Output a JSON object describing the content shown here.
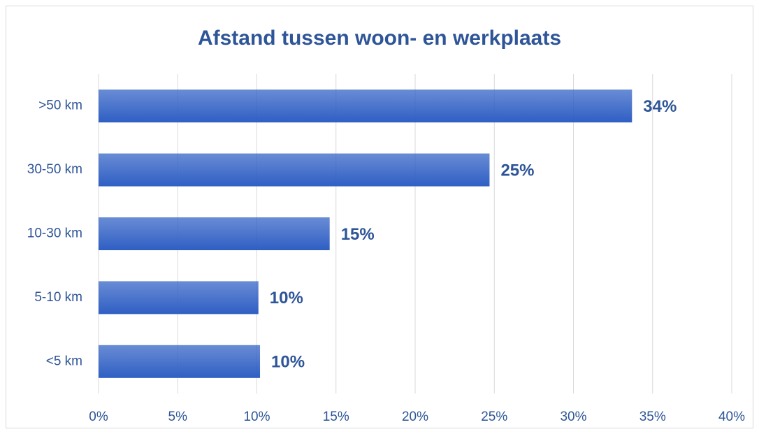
{
  "chart_data": {
    "type": "barh",
    "title": "Afstand tussen woon- en werkplaats",
    "categories": [
      ">50 km",
      "30-50 km",
      "10-30 km",
      "5-10 km",
      "<5 km"
    ],
    "values": [
      33.7,
      24.7,
      14.6,
      10.1,
      10.2
    ],
    "value_labels": [
      "34%",
      "25%",
      "15%",
      "10%",
      "10%"
    ],
    "color": "#2f5fc4",
    "xlim": [
      0,
      40
    ],
    "xticks": [
      {
        "value": 0,
        "label": "0%"
      },
      {
        "value": 5,
        "label": "5%"
      },
      {
        "value": 10,
        "label": "10%"
      },
      {
        "value": 15,
        "label": "15%"
      },
      {
        "value": 20,
        "label": "20%"
      },
      {
        "value": 25,
        "label": "25%"
      },
      {
        "value": 30,
        "label": "30%"
      },
      {
        "value": 35,
        "label": "35%"
      },
      {
        "value": 40,
        "label": "40%"
      }
    ],
    "grid": true
  }
}
